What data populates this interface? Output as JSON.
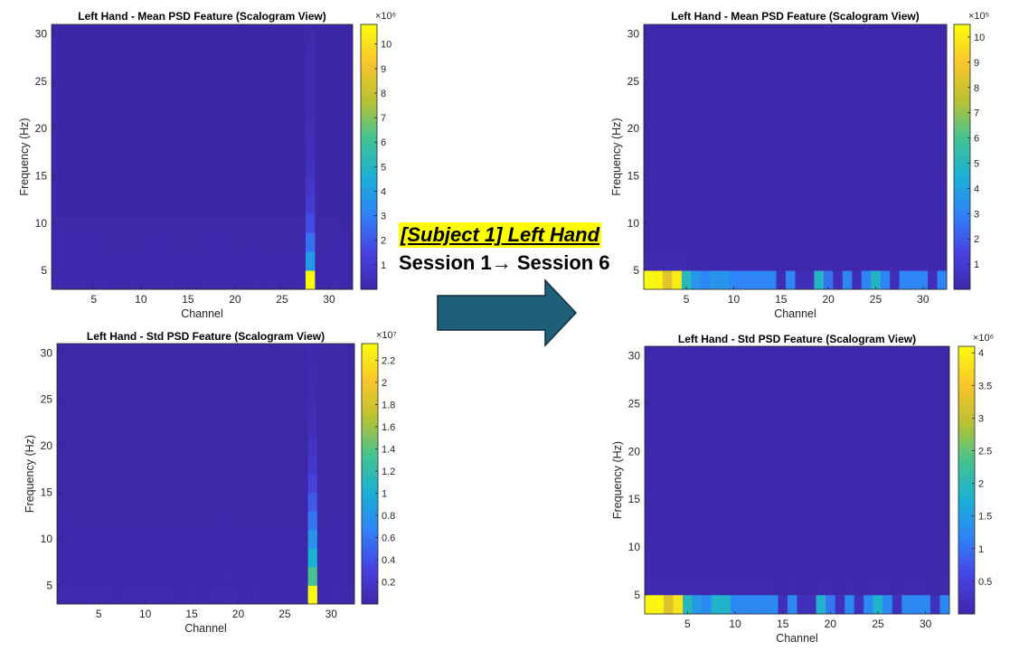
{
  "colors": {
    "arrow_fill": "#1f5f7a",
    "arrow_stroke": "#0e2f3d",
    "banner_highlight": "#ffff00",
    "colormap": [
      "#3e26a8",
      "#4743e3",
      "#2f83f8",
      "#1ab0d4",
      "#44c392",
      "#b9c232",
      "#f9c52b",
      "#f9fb0e"
    ]
  },
  "banner": {
    "title": "[Subject 1] Left Hand",
    "subtitle": "Session 1→ Session 6"
  },
  "arrow": {
    "icon": "right-arrow-icon"
  },
  "chart_data": [
    {
      "type": "heatmap",
      "title": "Left Hand - Mean PSD Feature (Scalogram View)",
      "xlabel": "Channel",
      "ylabel": "Frequency (Hz)",
      "xticks": [
        5,
        10,
        15,
        20,
        25,
        30
      ],
      "yticks": [
        5,
        10,
        15,
        20,
        25,
        30
      ],
      "xlim": [
        0.5,
        32.5
      ],
      "ylim": [
        3,
        31
      ],
      "colorbar": {
        "exponent": "×10⁶",
        "ticks": [
          1,
          2,
          3,
          4,
          5,
          6,
          7,
          8,
          9,
          10
        ],
        "range": [
          0,
          10.8
        ]
      },
      "freq_bands": [
        4,
        6,
        8,
        10,
        12,
        14,
        16,
        18,
        20,
        22,
        24,
        26,
        28,
        30
      ],
      "profile": [
        0.08,
        0.07,
        0.06,
        0.07,
        0.06,
        0.08,
        0.05,
        0.05,
        0.06,
        0.05,
        0.07,
        0.06,
        0.07,
        0.05,
        0.06,
        0.05,
        0.06,
        0.07,
        0.08,
        0.06,
        0.05,
        0.06,
        0.05,
        0.06,
        0.05,
        0.05,
        0.06,
        0.6,
        0.05,
        0.07,
        0.08,
        0.04
      ],
      "hot": [
        {
          "channel": 28,
          "values": [
            10.8,
            3.8,
            2.6,
            1.7,
            1.1,
            0.8,
            0.6,
            0.5,
            0.4,
            0.3,
            0.3,
            0.2,
            0.2,
            0.1
          ]
        }
      ],
      "decay": 0.62,
      "floor": 0.05
    },
    {
      "type": "heatmap",
      "title": "Left Hand - Std PSD Feature (Scalogram View)",
      "xlabel": "Channel",
      "ylabel": "Frequency (Hz)",
      "xticks": [
        5,
        10,
        15,
        20,
        25,
        30
      ],
      "yticks": [
        5,
        10,
        15,
        20,
        25,
        30
      ],
      "xlim": [
        0.5,
        32.5
      ],
      "ylim": [
        3,
        31
      ],
      "colorbar": {
        "exponent": "×10⁷",
        "ticks": [
          0.2,
          0.4,
          0.6,
          0.8,
          1,
          1.2,
          1.4,
          1.6,
          1.8,
          2,
          2.2
        ],
        "range": [
          0,
          2.35
        ]
      },
      "freq_bands": [
        4,
        6,
        8,
        10,
        12,
        14,
        16,
        18,
        20,
        22,
        24,
        26,
        28,
        30
      ],
      "profile": [
        0.03,
        0.025,
        0.02,
        0.03,
        0.02,
        0.035,
        0.015,
        0.02,
        0.02,
        0.02,
        0.03,
        0.02,
        0.03,
        0.015,
        0.02,
        0.015,
        0.02,
        0.03,
        0.035,
        0.02,
        0.015,
        0.02,
        0.015,
        0.02,
        0.015,
        0.015,
        0.02,
        0.3,
        0.015,
        0.025,
        0.03,
        0.01
      ],
      "hot": [
        {
          "channel": 28,
          "values": [
            2.35,
            1.35,
            1.0,
            0.8,
            0.6,
            0.45,
            0.3,
            0.2,
            0.15,
            0.1,
            0.08,
            0.06,
            0.05,
            0.03
          ]
        }
      ],
      "decay": 0.62,
      "floor": 0.02
    },
    {
      "type": "heatmap",
      "title": "Left Hand - Mean PSD Feature (Scalogram View)",
      "xlabel": "Channel",
      "ylabel": "Frequency (Hz)",
      "xticks": [
        5,
        10,
        15,
        20,
        25,
        30
      ],
      "yticks": [
        5,
        10,
        15,
        20,
        25,
        30
      ],
      "xlim": [
        0.5,
        32.5
      ],
      "ylim": [
        3,
        31
      ],
      "colorbar": {
        "exponent": "×10⁵",
        "ticks": [
          1,
          2,
          3,
          4,
          5,
          6,
          7,
          8,
          9,
          10
        ],
        "range": [
          0,
          10.5
        ]
      },
      "freq_bands": [
        4,
        6,
        8,
        10,
        12,
        14,
        16,
        18,
        20,
        22,
        24,
        26,
        28,
        30
      ],
      "profile": [
        10.5,
        10.2,
        8.4,
        10.0,
        5.0,
        3.5,
        3.0,
        3.5,
        3.5,
        3.0,
        3.0,
        3.0,
        3.0,
        3.0,
        0.3,
        3.0,
        0.3,
        0.3,
        4.8,
        2.5,
        0.3,
        3.0,
        0.3,
        3.0,
        4.8,
        3.0,
        0.3,
        3.0,
        3.0,
        3.0,
        0.3,
        3.0
      ],
      "hot": [],
      "decay": 0.01,
      "floor": 0.2
    },
    {
      "type": "heatmap",
      "title": "Left Hand - Std PSD Feature (Scalogram View)",
      "xlabel": "Channel",
      "ylabel": "Frequency (Hz)",
      "xticks": [
        5,
        10,
        15,
        20,
        25,
        30
      ],
      "yticks": [
        5,
        10,
        15,
        20,
        25,
        30
      ],
      "xlim": [
        0.5,
        32.5
      ],
      "ylim": [
        3,
        31
      ],
      "colorbar": {
        "exponent": "×10⁶",
        "ticks": [
          0.5,
          1,
          1.5,
          2,
          2.5,
          3,
          3.5,
          4
        ],
        "range": [
          0,
          4.1
        ]
      },
      "freq_bands": [
        4,
        6,
        8,
        10,
        12,
        14,
        16,
        18,
        20,
        22,
        24,
        26,
        28,
        30
      ],
      "profile": [
        4.0,
        4.0,
        3.2,
        3.8,
        1.9,
        1.4,
        1.2,
        1.8,
        1.8,
        1.2,
        1.2,
        1.2,
        1.2,
        1.2,
        0.15,
        1.2,
        0.15,
        0.15,
        1.8,
        1.0,
        0.15,
        1.2,
        0.15,
        1.2,
        1.8,
        1.2,
        0.15,
        1.2,
        1.2,
        1.2,
        0.15,
        1.2
      ],
      "hot": [],
      "decay": 0.01,
      "floor": 0.1
    }
  ]
}
